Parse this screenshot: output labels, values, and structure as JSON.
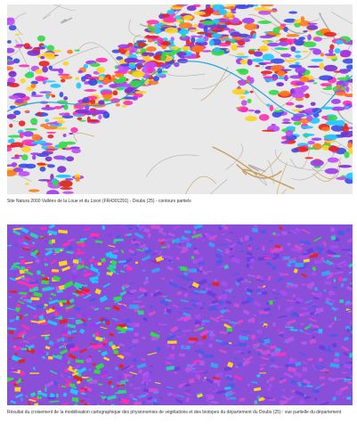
{
  "maps": [
    {
      "caption": "Site Natura 2000 Vallées de la Loue et du Lison (FR4301291) - Doubs (25) - contours partiels"
    },
    {
      "caption": "Résultat du croisement de la modélisation cartographique des physionomies de végétations et des biotopes du département du Doubs (25) : vue partielle du département"
    }
  ]
}
